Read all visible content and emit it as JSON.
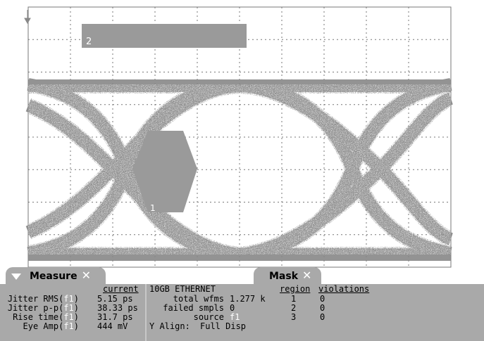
{
  "mask_labels": {
    "region1": "1",
    "region2": "2"
  },
  "colors": {
    "panel": "#a9a9a9",
    "trace": "#505050",
    "mask": "#9a9a9a",
    "grid": "#666666"
  },
  "measure_tab": {
    "label": "Measure",
    "collapse_icon": "triangle-down-icon",
    "close_icon": "close-icon"
  },
  "mask_tab": {
    "label": "Mask",
    "close_icon": "close-icon"
  },
  "measure": {
    "header": "current",
    "rows": [
      {
        "name": "Jitter RMS(",
        "src": "f1",
        "close": ")",
        "value": "5.15 ps"
      },
      {
        "name": "Jitter p-p(",
        "src": "f1",
        "close": ")",
        "value": "38.33 ps"
      },
      {
        "name": "Rise time(",
        "src": "f1",
        "close": ")",
        "value": "31.7 ps"
      },
      {
        "name": "Eye Amp(",
        "src": "f1",
        "close": ")",
        "value": "444 mV"
      }
    ]
  },
  "mask": {
    "standard": "10GB ETHERNET",
    "total_wfms_label": "total wfms",
    "total_wfms_value": "1.277 k",
    "failed_label": "failed smpls",
    "failed_value": "0",
    "source_label": "source",
    "source_value": "f1",
    "yalign_label": "Y Align:",
    "yalign_value": "Full Disp",
    "region_header": "region",
    "violations_header": "violations",
    "regions": [
      {
        "region": "1",
        "violations": "0"
      },
      {
        "region": "2",
        "violations": "0"
      },
      {
        "region": "3",
        "violations": "0"
      }
    ]
  }
}
